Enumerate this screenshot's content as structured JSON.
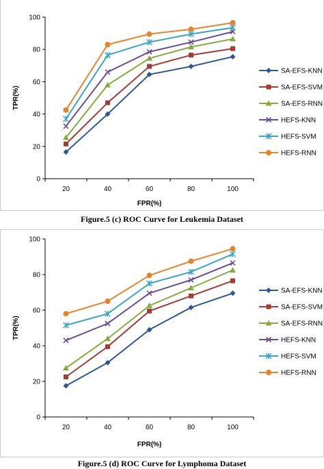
{
  "chart_data": [
    {
      "type": "line",
      "caption": "Figure.5 (c) ROC Curve for Leukemia Dataset",
      "xlabel": "FPR(%)",
      "ylabel": "TPR(%)",
      "categories": [
        "20",
        "40",
        "60",
        "80",
        "100"
      ],
      "y_ticks": [
        "0",
        "20",
        "40",
        "60",
        "80",
        "100"
      ],
      "ylim": [
        0,
        100
      ],
      "grid": false,
      "legend": "right",
      "series": [
        {
          "name": "SA-EFS-KNN",
          "values": [
            16.5,
            40,
            64.5,
            69.5,
            75.5
          ],
          "color": "#2e5597",
          "marker": "diamond"
        },
        {
          "name": "SA-EFS-SVM",
          "values": [
            21.5,
            47,
            69.5,
            76.5,
            80.5
          ],
          "color": "#a33b36",
          "marker": "square"
        },
        {
          "name": "SA-EFS-RNN",
          "values": [
            25.5,
            58,
            74.5,
            81.5,
            86.5
          ],
          "color": "#86ab3d",
          "marker": "triangle"
        },
        {
          "name": "HEFS-KNN",
          "values": [
            32.5,
            66,
            78.5,
            84.5,
            91
          ],
          "color": "#6a4a91",
          "marker": "x"
        },
        {
          "name": "HEFS-SVM",
          "values": [
            37,
            76.5,
            84.5,
            89.5,
            93.5
          ],
          "color": "#38a3c4",
          "marker": "star"
        },
        {
          "name": "HEFS-RNN",
          "values": [
            42.5,
            83,
            89.5,
            92.5,
            96.5
          ],
          "color": "#e4842c",
          "marker": "circle"
        }
      ]
    },
    {
      "type": "line",
      "caption": "Figure.5 (d) ROC Curve for Lymphoma Dataset",
      "xlabel": "FPR(%)",
      "ylabel": "TPR(%)",
      "categories": [
        "20",
        "40",
        "60",
        "80",
        "100"
      ],
      "y_ticks": [
        "0",
        "20",
        "40",
        "60",
        "80",
        "100"
      ],
      "ylim": [
        0,
        100
      ],
      "grid": false,
      "legend": "right",
      "series": [
        {
          "name": "SA-EFS-KNN",
          "values": [
            17.5,
            30.5,
            49,
            61.5,
            69.5
          ],
          "color": "#2e5597",
          "marker": "diamond"
        },
        {
          "name": "SA-EFS-SVM",
          "values": [
            22.5,
            39.5,
            59.5,
            68,
            76.5
          ],
          "color": "#a33b36",
          "marker": "square"
        },
        {
          "name": "SA-EFS-RNN",
          "values": [
            27.5,
            44,
            62.5,
            72.5,
            82.5
          ],
          "color": "#86ab3d",
          "marker": "triangle"
        },
        {
          "name": "HEFS-KNN",
          "values": [
            43,
            52.5,
            69.5,
            77,
            86.5
          ],
          "color": "#6a4a91",
          "marker": "x"
        },
        {
          "name": "HEFS-SVM",
          "values": [
            51.5,
            58,
            75,
            81.5,
            91.5
          ],
          "color": "#38a3c4",
          "marker": "star"
        },
        {
          "name": "HEFS-RNN",
          "values": [
            58,
            65,
            79.5,
            87.5,
            94.5
          ],
          "color": "#e4842c",
          "marker": "circle"
        }
      ]
    }
  ]
}
